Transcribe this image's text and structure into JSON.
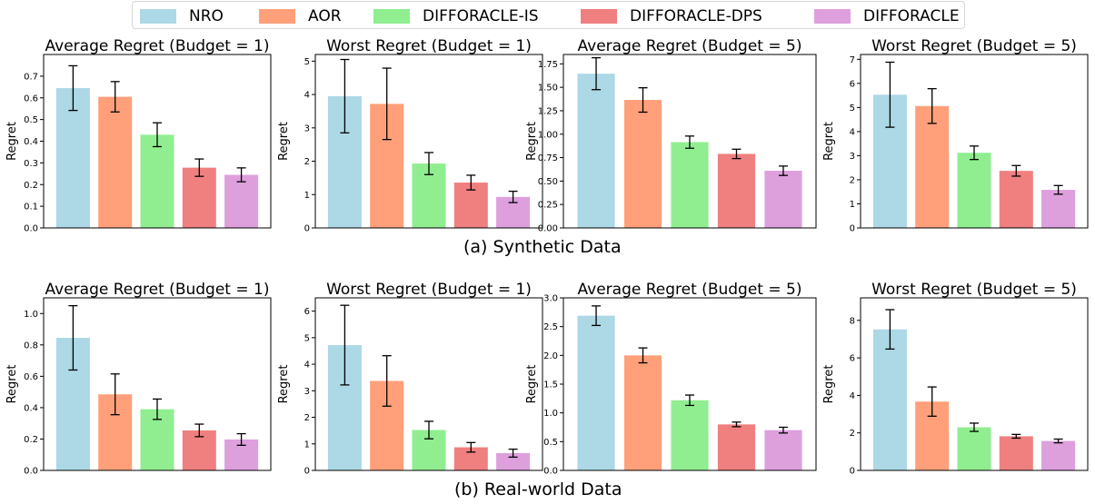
{
  "colors": {
    "NRO": "#add8e6",
    "AOR": "#ffa07a",
    "DIFFORACLE-IS": "#90ee90",
    "DIFFORACLE-DPS": "#f08080",
    "DIFFORACLE": "#dda0dd"
  },
  "legend": {
    "items": [
      "NRO",
      "AOR",
      "DIFFORACLE-IS",
      "DIFFORACLE-DPS",
      "DIFFORACLE"
    ]
  },
  "sections": {
    "synthetic_title": "(a) Synthetic Data",
    "real_title": "(b) Real-world Data"
  },
  "chart_data": [
    {
      "type": "bar",
      "section": "synthetic",
      "title": "Average Regret (Budget = 1)",
      "ylabel": "Regret",
      "categories": [
        "NRO",
        "AOR",
        "DIFFORACLE-IS",
        "DIFFORACLE-DPS",
        "DIFFORACLE"
      ],
      "values": [
        0.645,
        0.605,
        0.43,
        0.278,
        0.245
      ],
      "errors": [
        0.103,
        0.07,
        0.055,
        0.04,
        0.032
      ],
      "ylim": [
        0,
        0.8
      ],
      "yticks": [
        0.0,
        0.1,
        0.2,
        0.3,
        0.4,
        0.5,
        0.6,
        0.7
      ],
      "ytick_labels": [
        "0.0",
        "0.1",
        "0.2",
        "0.3",
        "0.4",
        "0.5",
        "0.6",
        "0.7"
      ]
    },
    {
      "type": "bar",
      "section": "synthetic",
      "title": "Worst Regret (Budget = 1)",
      "ylabel": "Regret",
      "categories": [
        "NRO",
        "AOR",
        "DIFFORACLE-IS",
        "DIFFORACLE-DPS",
        "DIFFORACLE"
      ],
      "values": [
        3.95,
        3.72,
        1.93,
        1.36,
        0.93
      ],
      "errors": [
        1.1,
        1.07,
        0.33,
        0.22,
        0.17
      ],
      "ylim": [
        0,
        5.2
      ],
      "yticks": [
        0,
        1,
        2,
        3,
        4,
        5
      ],
      "ytick_labels": [
        "0",
        "1",
        "2",
        "3",
        "4",
        "5"
      ]
    },
    {
      "type": "bar",
      "section": "synthetic",
      "title": "Average Regret (Budget = 5)",
      "ylabel": "Regret",
      "categories": [
        "NRO",
        "AOR",
        "DIFFORACLE-IS",
        "DIFFORACLE-DPS",
        "DIFFORACLE"
      ],
      "values": [
        1.645,
        1.365,
        0.915,
        0.79,
        0.61
      ],
      "errors": [
        0.17,
        0.13,
        0.065,
        0.05,
        0.05
      ],
      "ylim": [
        0,
        1.85
      ],
      "yticks": [
        0.0,
        0.25,
        0.5,
        0.75,
        1.0,
        1.25,
        1.5,
        1.75
      ],
      "ytick_labels": [
        "0.00",
        "0.25",
        "0.50",
        "0.75",
        "1.00",
        "1.25",
        "1.50",
        "1.75"
      ]
    },
    {
      "type": "bar",
      "section": "synthetic",
      "title": "Worst Regret (Budget = 5)",
      "ylabel": "Regret",
      "categories": [
        "NRO",
        "AOR",
        "DIFFORACLE-IS",
        "DIFFORACLE-DPS",
        "DIFFORACLE"
      ],
      "values": [
        5.53,
        5.06,
        3.12,
        2.37,
        1.58
      ],
      "errors": [
        1.35,
        0.72,
        0.28,
        0.22,
        0.18
      ],
      "ylim": [
        0,
        7.2
      ],
      "yticks": [
        0,
        1,
        2,
        3,
        4,
        5,
        6,
        7
      ],
      "ytick_labels": [
        "0",
        "1",
        "2",
        "3",
        "4",
        "5",
        "6",
        "7"
      ]
    },
    {
      "type": "bar",
      "section": "real-world",
      "title": "Average Regret (Budget = 1)",
      "ylabel": "Regret",
      "categories": [
        "NRO",
        "AOR",
        "DIFFORACLE-IS",
        "DIFFORACLE-DPS",
        "DIFFORACLE"
      ],
      "values": [
        0.845,
        0.485,
        0.39,
        0.255,
        0.197
      ],
      "errors": [
        0.205,
        0.13,
        0.065,
        0.04,
        0.037
      ],
      "ylim": [
        0,
        1.1
      ],
      "yticks": [
        0.0,
        0.2,
        0.4,
        0.6,
        0.8,
        1.0
      ],
      "ytick_labels": [
        "0.0",
        "0.2",
        "0.4",
        "0.6",
        "0.8",
        "1.0"
      ]
    },
    {
      "type": "bar",
      "section": "real-world",
      "title": "Worst Regret (Budget = 1)",
      "ylabel": "Regret",
      "categories": [
        "NRO",
        "AOR",
        "DIFFORACLE-IS",
        "DIFFORACLE-DPS",
        "DIFFORACLE"
      ],
      "values": [
        4.72,
        3.37,
        1.52,
        0.87,
        0.65
      ],
      "errors": [
        1.5,
        0.95,
        0.33,
        0.18,
        0.15
      ],
      "ylim": [
        0,
        6.5
      ],
      "yticks": [
        0,
        1,
        2,
        3,
        4,
        5,
        6
      ],
      "ytick_labels": [
        "0",
        "1",
        "2",
        "3",
        "4",
        "5",
        "6"
      ]
    },
    {
      "type": "bar",
      "section": "real-world",
      "title": "Average Regret (Budget = 5)",
      "ylabel": "Regret",
      "categories": [
        "NRO",
        "AOR",
        "DIFFORACLE-IS",
        "DIFFORACLE-DPS",
        "DIFFORACLE"
      ],
      "values": [
        2.69,
        2.0,
        1.22,
        0.8,
        0.7
      ],
      "errors": [
        0.17,
        0.13,
        0.09,
        0.04,
        0.05
      ],
      "ylim": [
        0,
        3.0
      ],
      "yticks": [
        0.0,
        0.5,
        1.0,
        1.5,
        2.0,
        2.5,
        3.0
      ],
      "ytick_labels": [
        "0.0",
        "0.5",
        "1.0",
        "1.5",
        "2.0",
        "2.5",
        "3.0"
      ]
    },
    {
      "type": "bar",
      "section": "real-world",
      "title": "Worst Regret (Budget = 5)",
      "ylabel": "Regret",
      "categories": [
        "NRO",
        "AOR",
        "DIFFORACLE-IS",
        "DIFFORACLE-DPS",
        "DIFFORACLE"
      ],
      "values": [
        7.52,
        3.67,
        2.3,
        1.82,
        1.57
      ],
      "errors": [
        1.05,
        0.78,
        0.22,
        0.1,
        0.1
      ],
      "ylim": [
        0,
        9.2
      ],
      "yticks": [
        0,
        2,
        4,
        6,
        8
      ],
      "ytick_labels": [
        "0",
        "2",
        "4",
        "6",
        "8"
      ]
    }
  ]
}
